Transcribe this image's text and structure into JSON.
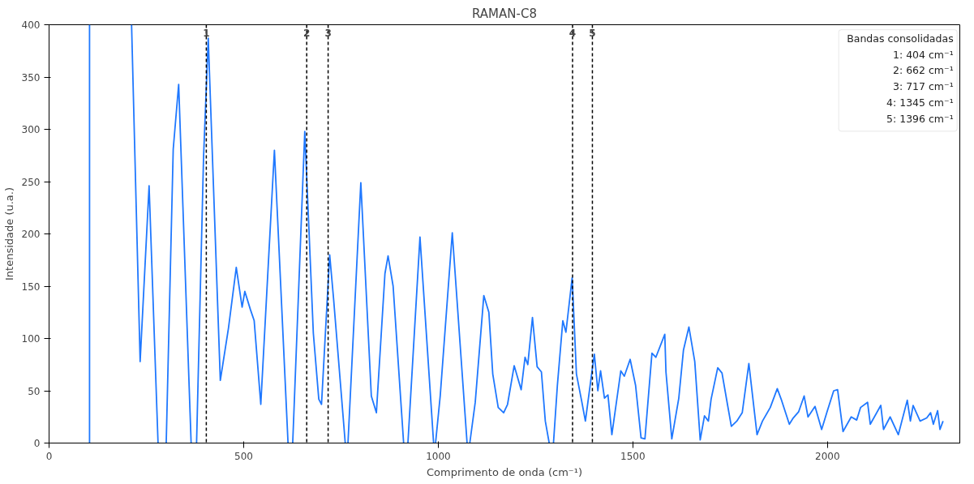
{
  "chart_data": {
    "type": "line",
    "title": "RAMAN-C8",
    "xlabel": "Comprimento de onda (cm⁻¹)",
    "ylabel": "Intensidade (u.a.)",
    "legend_title": "Bandas consolidadas",
    "annotations": [
      "1: 404 cm⁻¹",
      "2: 662 cm⁻¹",
      "3: 717 cm⁻¹",
      "4: 1345 cm⁻¹",
      "5: 1396 cm⁻¹",
      {
        "text": "1",
        "x": 404,
        "y": 400
      },
      {
        "text": "2",
        "x": 662,
        "y": 400
      },
      {
        "text": "3",
        "x": 717,
        "y": 400
      },
      {
        "text": "4",
        "x": 1345,
        "y": 400
      },
      {
        "text": "5",
        "x": 1396,
        "y": 400
      }
    ],
    "xlim": [
      0,
      2340
    ],
    "ylim": [
      0,
      400
    ],
    "xticks": [
      0,
      500,
      1000,
      1500,
      2000
    ],
    "yticks": [
      0,
      50,
      100,
      150,
      200,
      250,
      300,
      350,
      400
    ],
    "grid": false,
    "ref_lines": [
      {
        "axis": "x",
        "value": 404,
        "color": "#000000",
        "line_style": "dashed"
      },
      {
        "axis": "x",
        "value": 662,
        "color": "#000000",
        "line_style": "dashed"
      },
      {
        "axis": "x",
        "value": 717,
        "color": "#000000",
        "line_style": "dashed"
      },
      {
        "axis": "x",
        "value": 1345,
        "color": "#000000",
        "line_style": "dashed"
      },
      {
        "axis": "x",
        "value": 1396,
        "color": "#000000",
        "line_style": "dashed"
      }
    ],
    "series": [
      {
        "color": "#1f78ff",
        "x": [
          104,
          104,
          160,
          212,
          234,
          257,
          280,
          290,
          301,
          319,
          333,
          365,
          372,
          379,
          397,
          409,
          440,
          461,
          481,
          496,
          503,
          517,
          527,
          544,
          579,
          614,
          620,
          626,
          657,
          679,
          693,
          700,
          721,
          731,
          761,
          764,
          768,
          801,
          828,
          841,
          863,
          871,
          884,
          911,
          916,
          922,
          953,
          988,
          990,
          993,
          1005,
          1036,
          1074,
          1077,
          1081,
          1095,
          1117,
          1130,
          1140,
          1154,
          1168,
          1178,
          1195,
          1213,
          1223,
          1230,
          1242,
          1254,
          1265,
          1275,
          1285,
          1290,
          1296,
          1306,
          1320,
          1328,
          1344,
          1355,
          1369,
          1378,
          1393,
          1401,
          1410,
          1417,
          1427,
          1436,
          1446,
          1469,
          1478,
          1493,
          1507,
          1521,
          1531,
          1549,
          1559,
          1582,
          1585,
          1600,
          1618,
          1630,
          1644,
          1659,
          1673,
          1684,
          1694,
          1701,
          1718,
          1729,
          1743,
          1753,
          1767,
          1781,
          1798,
          1819,
          1833,
          1853,
          1871,
          1881,
          1902,
          1912,
          1926,
          1940,
          1950,
          1968,
          1985,
          1999,
          2016,
          2026,
          2040,
          2061,
          2075,
          2085,
          2103,
          2110,
          2137,
          2144,
          2161,
          2182,
          2205,
          2213,
          2220,
          2238,
          2255,
          2265,
          2272,
          2283,
          2289,
          2297
        ],
        "values": [
          0,
          400,
          null,
          400,
          78,
          246,
          0,
          null,
          0,
          281,
          343,
          0,
          null,
          0,
          274,
          387,
          60,
          110,
          168,
          130,
          145,
          128,
          117,
          37,
          280,
          0,
          null,
          0,
          298,
          105,
          42,
          37,
          180,
          138,
          0,
          null,
          0,
          249,
          45,
          29,
          162,
          179,
          150,
          0,
          null,
          0,
          197,
          0,
          null,
          0,
          45,
          201,
          0,
          null,
          0,
          39,
          141,
          125,
          66,
          34,
          29,
          37,
          74,
          51,
          82,
          75,
          120,
          73,
          68,
          21,
          0,
          null,
          0,
          55,
          117,
          106,
          158,
          66,
          39,
          21,
          63,
          85,
          50,
          69,
          43,
          46,
          8,
          69,
          64,
          80,
          55,
          5,
          4,
          86,
          82,
          104,
          68,
          4,
          43,
          89,
          111,
          78,
          3,
          26,
          21,
          42,
          72,
          67,
          37,
          16,
          21,
          29,
          76,
          8,
          21,
          34,
          52,
          42,
          18,
          24,
          30,
          45,
          25,
          35,
          13,
          30,
          50,
          51,
          11,
          25,
          22,
          34,
          39,
          18,
          36,
          13,
          25,
          8,
          41,
          21,
          36,
          21,
          24,
          29,
          18,
          31,
          13,
          21
        ]
      }
    ]
  }
}
